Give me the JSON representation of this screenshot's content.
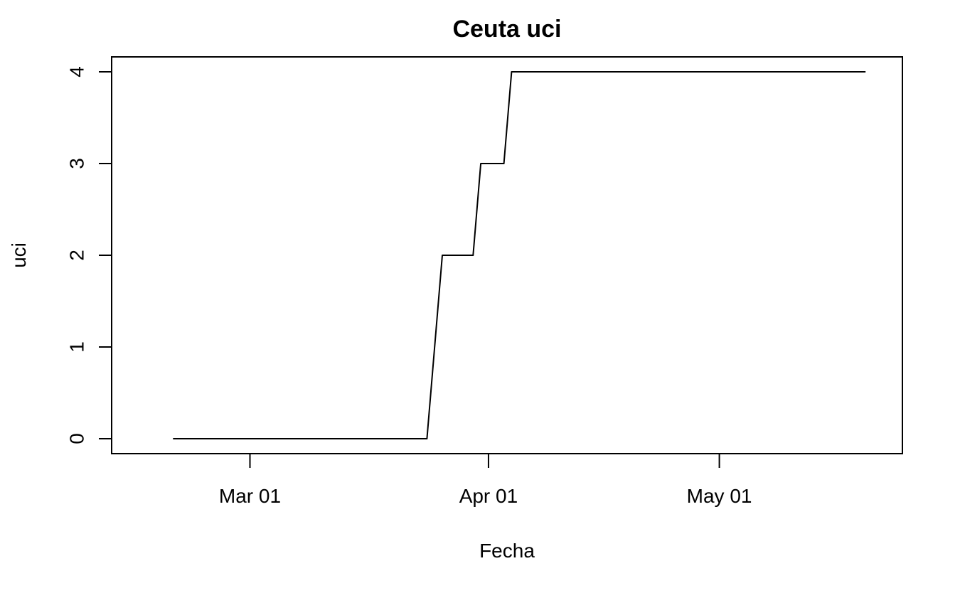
{
  "chart_data": {
    "type": "line",
    "title": "Ceuta uci",
    "xlabel": "Fecha",
    "ylabel": "uci",
    "ylim": [
      0,
      4
    ],
    "xlim": [
      "2020-02-16",
      "2020-05-21"
    ],
    "x_ticks": [
      {
        "date": "2020-03-01",
        "label": "Mar 01"
      },
      {
        "date": "2020-04-01",
        "label": "Apr 01"
      },
      {
        "date": "2020-05-01",
        "label": "May 01"
      }
    ],
    "y_ticks": [
      {
        "value": 0,
        "label": "0"
      },
      {
        "value": 1,
        "label": "1"
      },
      {
        "value": 2,
        "label": "2"
      },
      {
        "value": 3,
        "label": "3"
      },
      {
        "value": 4,
        "label": "4"
      }
    ],
    "grid": false,
    "legend": "none",
    "series": [
      {
        "color": "#000000",
        "x": [
          "2020-02-20",
          "2020-03-24",
          "2020-03-26",
          "2020-03-30",
          "2020-03-31",
          "2020-04-03",
          "2020-04-04",
          "2020-05-20"
        ],
        "values": [
          0,
          0,
          2,
          2,
          3,
          3,
          4,
          4
        ]
      }
    ]
  }
}
